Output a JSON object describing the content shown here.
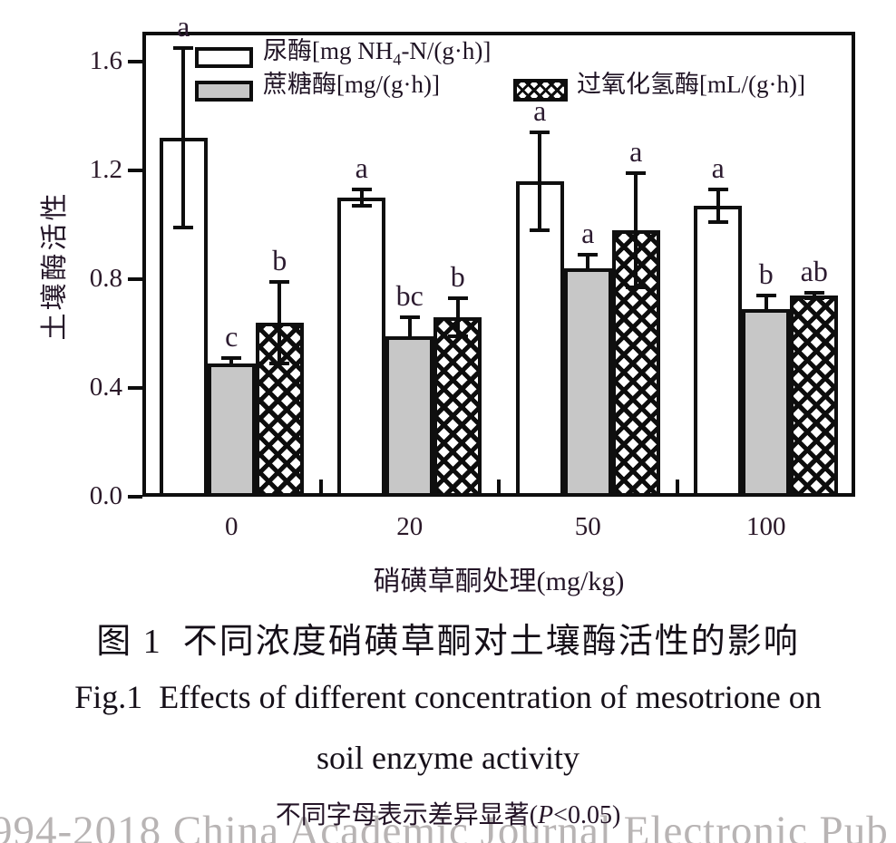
{
  "chart_data": {
    "type": "bar",
    "categories": [
      "0",
      "20",
      "50",
      "100"
    ],
    "series": [
      {
        "name": "尿酶",
        "unit": "[mg NH4-N/(g·h)]",
        "style": "white",
        "values": [
          1.32,
          1.1,
          1.16,
          1.07
        ],
        "errors": [
          0.33,
          0.03,
          0.18,
          0.06
        ],
        "letters": [
          "a",
          "a",
          "a",
          "a"
        ],
        "error_behind_bar": false
      },
      {
        "name": "蔗糖酶",
        "unit": "[mg/(g·h)]",
        "style": "gray",
        "values": [
          0.49,
          0.59,
          0.84,
          0.69
        ],
        "errors": [
          0.02,
          0.07,
          0.05,
          0.05
        ],
        "letters": [
          "c",
          "bc",
          "a",
          "b"
        ],
        "error_behind_bar": true
      },
      {
        "name": "过氧化氢酶",
        "unit": "[mL/(g·h)]",
        "style": "hatch",
        "values": [
          0.64,
          0.66,
          0.98,
          0.74
        ],
        "errors": [
          0.15,
          0.07,
          0.21,
          0.01
        ],
        "letters": [
          "b",
          "b",
          "a",
          "ab"
        ],
        "error_behind_bar": false
      }
    ],
    "title": "图 1  不同浓度硝磺草酮对土壤酶活性的影响",
    "xlabel": "硝磺草酮处理(mg/kg)",
    "ylabel": "土壤酶活性",
    "yticks": [
      "0.0",
      "0.4",
      "0.8",
      "1.2",
      "1.6"
    ],
    "ylim": [
      0,
      1.71
    ],
    "grid": false,
    "legend_position": "top-inside"
  },
  "legend": {
    "urease_prefix": "尿酶[mg NH",
    "urease_sub": "4",
    "urease_suffix": "-N/(g·h)]",
    "sucrase": "蔗糖酶[mg/(g·h)]",
    "catalase": "过氧化氢酶[mL/(g·h)]"
  },
  "captions": {
    "figure_cn": "图 1  不同浓度硝磺草酮对土壤酶活性的影响",
    "figure_en_line1": "Fig.1  Effects of different concentration of mesotrione on",
    "figure_en_line2": "soil enzyme activity",
    "note_prefix": "不同字母表示差异显著(",
    "note_italic": "P",
    "note_suffix": "<0.05)"
  },
  "watermark": "994-2018 China Academic Journal Electronic Pub"
}
